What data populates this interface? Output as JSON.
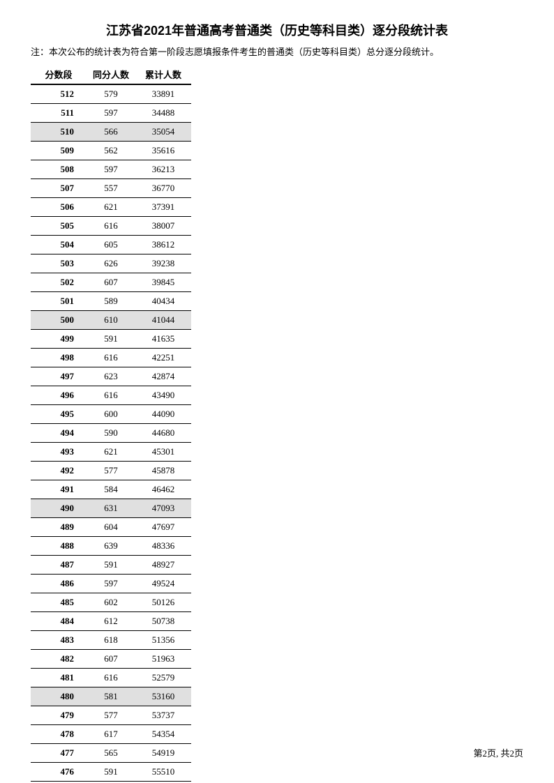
{
  "title": "江苏省2021年普通高考普通类（历史等科目类）逐分段统计表",
  "note": "注：本次公布的统计表为符合第一阶段志愿填报条件考生的普通类（历史等科目类）总分逐分段统计。",
  "columns": [
    "分数段",
    "同分人数",
    "累计人数"
  ],
  "highlight_color": "#e0e0e0",
  "rows": [
    {
      "score": 512,
      "same": 579,
      "cum": 33891,
      "hl": false
    },
    {
      "score": 511,
      "same": 597,
      "cum": 34488,
      "hl": false
    },
    {
      "score": 510,
      "same": 566,
      "cum": 35054,
      "hl": true
    },
    {
      "score": 509,
      "same": 562,
      "cum": 35616,
      "hl": false
    },
    {
      "score": 508,
      "same": 597,
      "cum": 36213,
      "hl": false
    },
    {
      "score": 507,
      "same": 557,
      "cum": 36770,
      "hl": false
    },
    {
      "score": 506,
      "same": 621,
      "cum": 37391,
      "hl": false
    },
    {
      "score": 505,
      "same": 616,
      "cum": 38007,
      "hl": false
    },
    {
      "score": 504,
      "same": 605,
      "cum": 38612,
      "hl": false
    },
    {
      "score": 503,
      "same": 626,
      "cum": 39238,
      "hl": false
    },
    {
      "score": 502,
      "same": 607,
      "cum": 39845,
      "hl": false
    },
    {
      "score": 501,
      "same": 589,
      "cum": 40434,
      "hl": false
    },
    {
      "score": 500,
      "same": 610,
      "cum": 41044,
      "hl": true
    },
    {
      "score": 499,
      "same": 591,
      "cum": 41635,
      "hl": false
    },
    {
      "score": 498,
      "same": 616,
      "cum": 42251,
      "hl": false
    },
    {
      "score": 497,
      "same": 623,
      "cum": 42874,
      "hl": false
    },
    {
      "score": 496,
      "same": 616,
      "cum": 43490,
      "hl": false
    },
    {
      "score": 495,
      "same": 600,
      "cum": 44090,
      "hl": false
    },
    {
      "score": 494,
      "same": 590,
      "cum": 44680,
      "hl": false
    },
    {
      "score": 493,
      "same": 621,
      "cum": 45301,
      "hl": false
    },
    {
      "score": 492,
      "same": 577,
      "cum": 45878,
      "hl": false
    },
    {
      "score": 491,
      "same": 584,
      "cum": 46462,
      "hl": false
    },
    {
      "score": 490,
      "same": 631,
      "cum": 47093,
      "hl": true
    },
    {
      "score": 489,
      "same": 604,
      "cum": 47697,
      "hl": false
    },
    {
      "score": 488,
      "same": 639,
      "cum": 48336,
      "hl": false
    },
    {
      "score": 487,
      "same": 591,
      "cum": 48927,
      "hl": false
    },
    {
      "score": 486,
      "same": 597,
      "cum": 49524,
      "hl": false
    },
    {
      "score": 485,
      "same": 602,
      "cum": 50126,
      "hl": false
    },
    {
      "score": 484,
      "same": 612,
      "cum": 50738,
      "hl": false
    },
    {
      "score": 483,
      "same": 618,
      "cum": 51356,
      "hl": false
    },
    {
      "score": 482,
      "same": 607,
      "cum": 51963,
      "hl": false
    },
    {
      "score": 481,
      "same": 616,
      "cum": 52579,
      "hl": false
    },
    {
      "score": 480,
      "same": 581,
      "cum": 53160,
      "hl": true
    },
    {
      "score": 479,
      "same": 577,
      "cum": 53737,
      "hl": false
    },
    {
      "score": 478,
      "same": 617,
      "cum": 54354,
      "hl": false
    },
    {
      "score": 477,
      "same": 565,
      "cum": 54919,
      "hl": false
    },
    {
      "score": 476,
      "same": 591,
      "cum": 55510,
      "hl": false
    }
  ],
  "footer": "第2页, 共2页"
}
